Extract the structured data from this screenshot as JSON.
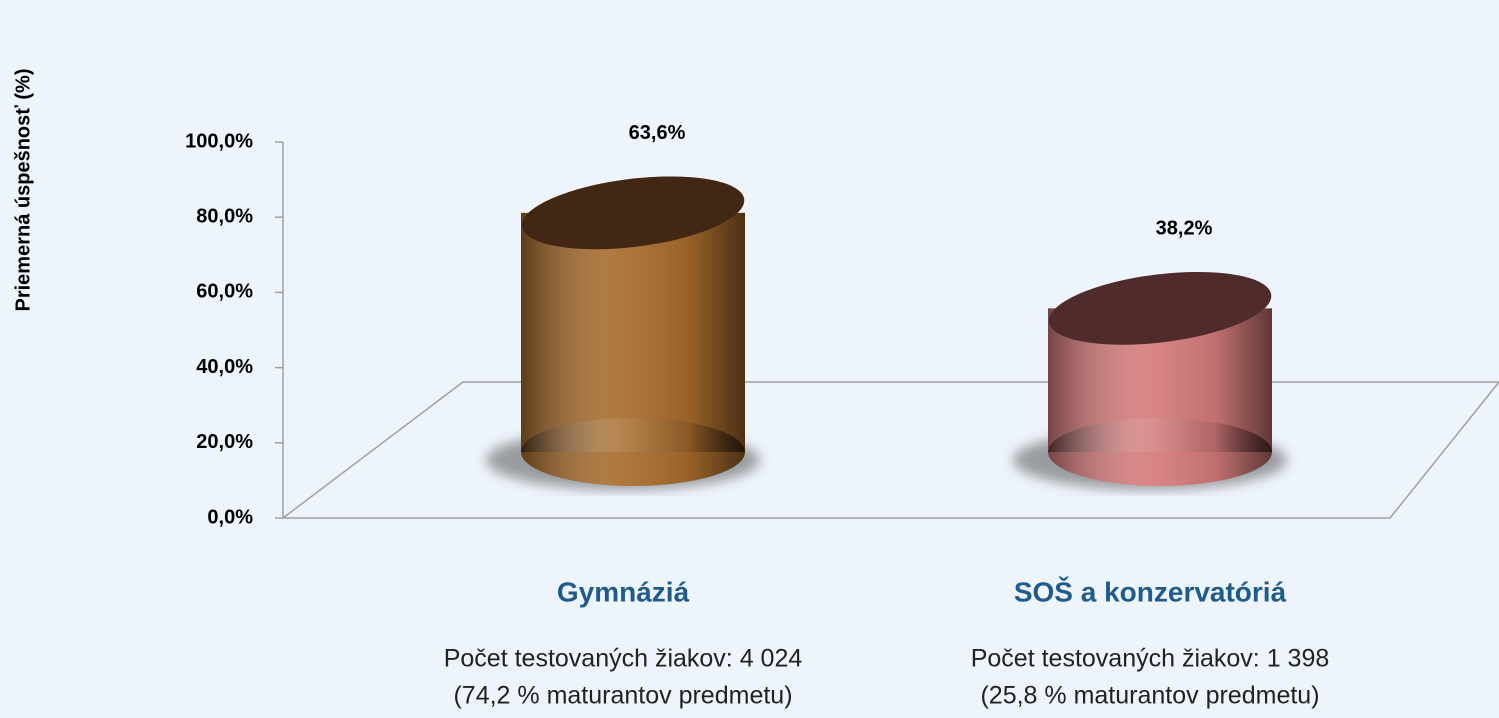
{
  "chart_data": {
    "type": "cylinder",
    "y_label": "Priemerná úspešnosť (%)",
    "categories": [
      "Gymnáziá",
      "SOŠ a konzervatóriá"
    ],
    "category_notes": [
      [
        "Počet testovaných žiakov: 4 024",
        "(74,2 % maturantov predmetu)"
      ],
      [
        "Počet testovaných žiakov: 1 398",
        "(25,8 % maturantov predmetu)"
      ]
    ],
    "values": [
      63.6,
      38.2
    ],
    "value_labels": [
      "63,6%",
      "38,2%"
    ],
    "colors": [
      "#a86c2c",
      "#d67b7b"
    ],
    "ylim": [
      0,
      100
    ],
    "yticks": [
      {
        "value": 0,
        "label": "0,0%"
      },
      {
        "value": 20,
        "label": "20,0%"
      },
      {
        "value": 40,
        "label": "40,0%"
      },
      {
        "value": 60,
        "label": "60,0%"
      },
      {
        "value": 80,
        "label": "80,0%"
      },
      {
        "value": 100,
        "label": "100,0%"
      }
    ]
  }
}
